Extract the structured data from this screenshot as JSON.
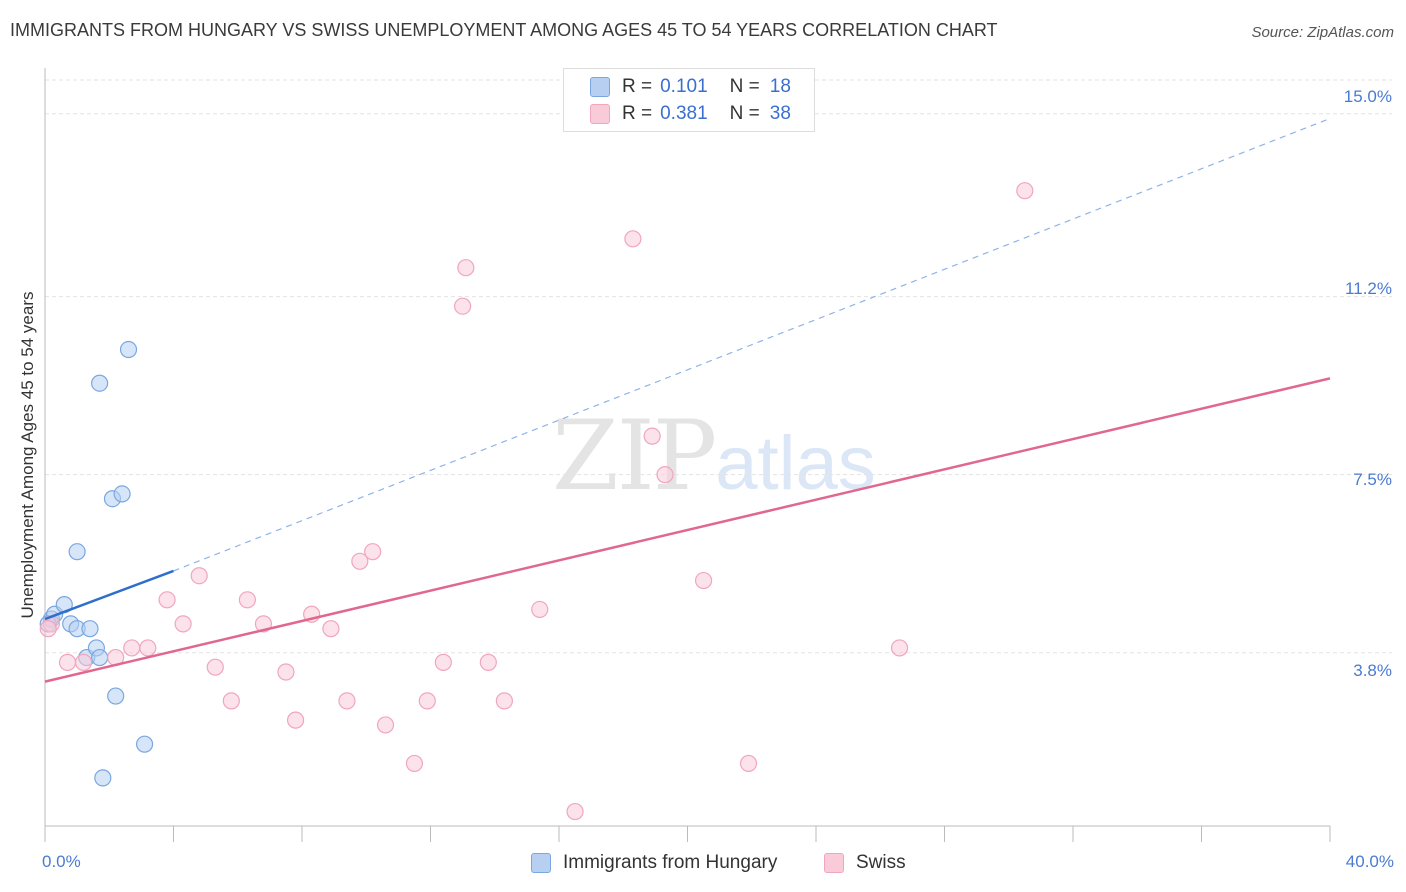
{
  "chart_data": {
    "type": "scatter",
    "title": "IMMIGRANTS FROM HUNGARY VS SWISS UNEMPLOYMENT AMONG AGES 45 TO 54 YEARS CORRELATION CHART",
    "source": "Source: ZipAtlas.com",
    "ylabel": "Unemployment Among Ages 45 to 54 years",
    "xlim": [
      0,
      40
    ],
    "ylim": [
      0.2,
      15.7
    ],
    "x_tick_labels": [
      "0.0%",
      "40.0%"
    ],
    "y_ticks": [
      {
        "value": 15.0,
        "label": "15.0%"
      },
      {
        "value": 11.2,
        "label": "11.2%"
      },
      {
        "value": 7.5,
        "label": "7.5%"
      },
      {
        "value": 3.8,
        "label": "3.8%"
      }
    ],
    "watermark": {
      "zip": "ZIP",
      "atlas": "atlas"
    },
    "legend": {
      "r_label": "R =",
      "n_label": "N =",
      "entries": [
        {
          "name": "Immigrants from Hungary",
          "r": "0.101",
          "n": "18"
        },
        {
          "name": "Swiss",
          "r": "0.381",
          "n": "38"
        }
      ]
    },
    "series": [
      {
        "name": "Immigrants from Hungary",
        "color": "#7aa7e0",
        "fill": "#b7d0f2",
        "line_color": "#2f6fcc",
        "trend": {
          "x0": 0,
          "y0": 4.5,
          "x1": 4.0,
          "y1": 5.5,
          "extended_x1": 40,
          "extended_y1": 14.9
        },
        "points": [
          {
            "x": 0.2,
            "y": 4.5
          },
          {
            "x": 0.3,
            "y": 4.6
          },
          {
            "x": 0.6,
            "y": 4.8
          },
          {
            "x": 0.8,
            "y": 4.4
          },
          {
            "x": 1.0,
            "y": 4.3
          },
          {
            "x": 1.0,
            "y": 5.9
          },
          {
            "x": 1.3,
            "y": 3.7
          },
          {
            "x": 1.4,
            "y": 4.3
          },
          {
            "x": 1.6,
            "y": 3.9
          },
          {
            "x": 1.7,
            "y": 3.7
          },
          {
            "x": 1.7,
            "y": 9.4
          },
          {
            "x": 2.1,
            "y": 7.0
          },
          {
            "x": 2.4,
            "y": 7.1
          },
          {
            "x": 2.6,
            "y": 10.1
          },
          {
            "x": 2.2,
            "y": 2.9
          },
          {
            "x": 3.1,
            "y": 1.9
          },
          {
            "x": 1.8,
            "y": 1.2
          },
          {
            "x": 0.1,
            "y": 4.4
          }
        ]
      },
      {
        "name": "Swiss",
        "color": "#f0a6bd",
        "fill": "#f9cbd9",
        "line_color": "#e0688f",
        "trend": {
          "x0": 0,
          "y0": 3.2,
          "x1": 40,
          "y1": 9.5
        },
        "points": [
          {
            "x": 0.2,
            "y": 4.4
          },
          {
            "x": 0.7,
            "y": 3.6
          },
          {
            "x": 1.2,
            "y": 3.6
          },
          {
            "x": 2.2,
            "y": 3.7
          },
          {
            "x": 2.7,
            "y": 3.9
          },
          {
            "x": 3.2,
            "y": 3.9
          },
          {
            "x": 3.8,
            "y": 4.9
          },
          {
            "x": 4.3,
            "y": 4.4
          },
          {
            "x": 4.8,
            "y": 5.4
          },
          {
            "x": 5.3,
            "y": 3.5
          },
          {
            "x": 5.8,
            "y": 2.8
          },
          {
            "x": 6.3,
            "y": 4.9
          },
          {
            "x": 6.8,
            "y": 4.4
          },
          {
            "x": 7.5,
            "y": 3.4
          },
          {
            "x": 7.8,
            "y": 2.4
          },
          {
            "x": 8.3,
            "y": 4.6
          },
          {
            "x": 8.9,
            "y": 4.3
          },
          {
            "x": 9.4,
            "y": 2.8
          },
          {
            "x": 9.8,
            "y": 5.7
          },
          {
            "x": 10.2,
            "y": 5.9
          },
          {
            "x": 10.6,
            "y": 2.3
          },
          {
            "x": 11.5,
            "y": 1.5
          },
          {
            "x": 11.9,
            "y": 2.8
          },
          {
            "x": 12.4,
            "y": 3.6
          },
          {
            "x": 13.0,
            "y": 11.0
          },
          {
            "x": 13.1,
            "y": 11.8
          },
          {
            "x": 13.8,
            "y": 3.6
          },
          {
            "x": 14.3,
            "y": 2.8
          },
          {
            "x": 15.4,
            "y": 4.7
          },
          {
            "x": 16.5,
            "y": 0.5
          },
          {
            "x": 18.3,
            "y": 12.4
          },
          {
            "x": 18.9,
            "y": 8.3
          },
          {
            "x": 19.3,
            "y": 7.5
          },
          {
            "x": 20.5,
            "y": 5.3
          },
          {
            "x": 21.9,
            "y": 1.5
          },
          {
            "x": 26.6,
            "y": 3.9
          },
          {
            "x": 30.5,
            "y": 13.4
          },
          {
            "x": 0.1,
            "y": 4.3
          }
        ]
      }
    ]
  }
}
